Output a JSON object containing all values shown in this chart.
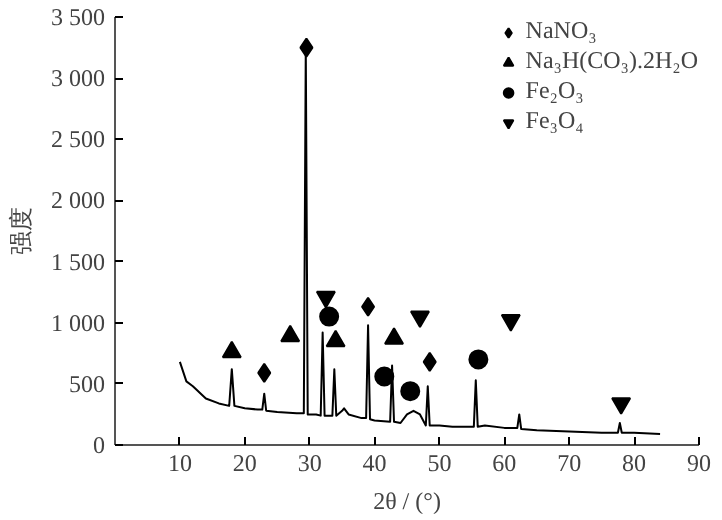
{
  "chart_data": {
    "type": "line",
    "xlabel": "2θ / (°)",
    "ylabel": "强度",
    "xlim": [
      0,
      90
    ],
    "ylim": [
      0,
      3500
    ],
    "xticks": [
      10,
      20,
      30,
      40,
      50,
      60,
      70,
      80,
      90
    ],
    "yticks": [
      0,
      500,
      {
        "value": 1000,
        "label": "1 000"
      },
      {
        "value": 1500,
        "label": "1 500"
      },
      {
        "value": 2000,
        "label": "2 000"
      },
      {
        "value": 2500,
        "label": "2 500"
      },
      {
        "value": 3000,
        "label": "3 000"
      },
      {
        "value": 3500,
        "label": "3 500"
      }
    ],
    "grid": false,
    "legend": "top right",
    "series": [
      {
        "color": "#000000",
        "line_style": "solid",
        "x": [
          10,
          11,
          12,
          14,
          16,
          17.6,
          18,
          18.4,
          20,
          22,
          22.7,
          23,
          23.3,
          25,
          28,
          29.1,
          29.4,
          29.7,
          31,
          31.7,
          32,
          32.3,
          33.5,
          33.8,
          34.1,
          35,
          35.3,
          36,
          38,
          38.7,
          39,
          39.3,
          40,
          42.4,
          42.7,
          43,
          44,
          45,
          46,
          47,
          47.9,
          48.2,
          48.5,
          50,
          52,
          55.3,
          55.6,
          55.9,
          57,
          60,
          62,
          62.3,
          62.6,
          65,
          70,
          75,
          77.5,
          77.8,
          78.1,
          80,
          84
        ],
        "values": [
          680,
          520,
          480,
          380,
          340,
          320,
          620,
          320,
          300,
          290,
          290,
          420,
          280,
          270,
          260,
          260,
          3250,
          250,
          250,
          240,
          920,
          240,
          240,
          620,
          240,
          280,
          300,
          250,
          220,
          220,
          980,
          210,
          200,
          190,
          650,
          190,
          180,
          250,
          280,
          250,
          160,
          480,
          160,
          160,
          150,
          150,
          530,
          150,
          160,
          140,
          140,
          250,
          130,
          120,
          110,
          100,
          100,
          180,
          100,
          100,
          90
        ]
      },
      {
        "type": "scatter",
        "name": "NaNO₃",
        "color": "#000000",
        "marker": "diamond",
        "x": [
          29.5,
          23,
          39,
          48.5
        ],
        "values": [
          3250,
          590,
          1130,
          680
        ]
      },
      {
        "type": "scatter",
        "name": "Na₃H(CO₃).2H₂O",
        "color": "#000000",
        "marker": "triangle",
        "x": [
          18,
          27,
          34,
          43
        ],
        "values": [
          760,
          890,
          850,
          870
        ]
      },
      {
        "type": "scatter",
        "name": "Fe₂O₃",
        "color": "#000000",
        "marker": "circle",
        "x": [
          33,
          41.5,
          45.5,
          56
        ],
        "values": [
          1050,
          560,
          440,
          700
        ]
      },
      {
        "type": "scatter",
        "name": "Fe₃O₄",
        "color": "#000000",
        "marker": "triangle",
        "x": [
          32.5,
          47,
          61,
          78
        ],
        "values": [
          1210,
          1050,
          1020,
          340
        ]
      }
    ]
  }
}
